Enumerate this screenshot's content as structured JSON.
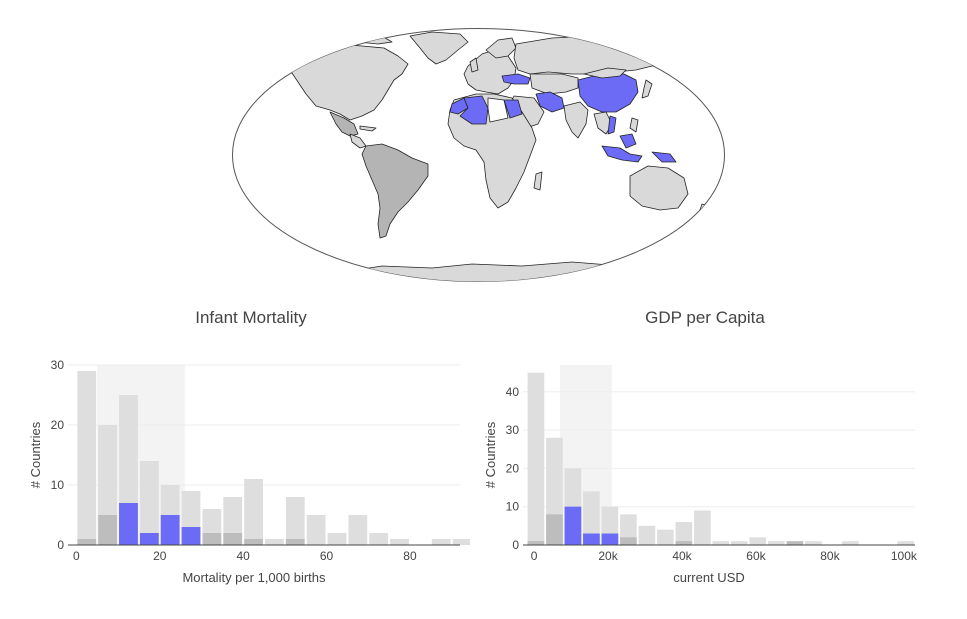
{
  "colors": {
    "highlight": "#6b6bf5",
    "country_default": "#d9d9d9",
    "country_dark": "#b4b4b4",
    "bar_background": "#dedede",
    "bar_mid": "#bdbdbd",
    "selection_band": "#f3f3f3",
    "grid": "#eeeeee",
    "axis_text": "#444444"
  },
  "map": {
    "highlighted_regions": [
      "China",
      "Turkey",
      "Iran",
      "Algeria",
      "Egypt",
      "Indonesia",
      "Vietnam",
      "Morocco"
    ],
    "darker_regions": [
      "Mexico",
      "Brazil",
      "Colombia",
      "Peru",
      "Argentina"
    ]
  },
  "chart_data": [
    {
      "type": "bar",
      "title": "Infant Mortality",
      "xlabel": "Mortality per 1,000 births",
      "ylabel": "# Countries",
      "xlim": [
        -2,
        92
      ],
      "ylim": [
        0,
        30
      ],
      "x_ticks": [
        0,
        20,
        40,
        60,
        80
      ],
      "x_tick_labels": [
        "0",
        "20",
        "40",
        "60",
        "80"
      ],
      "y_ticks": [
        0,
        10,
        20,
        30
      ],
      "bin_width": 5,
      "bin_starts": [
        0,
        5,
        10,
        15,
        20,
        25,
        30,
        35,
        40,
        45,
        50,
        55,
        60,
        65,
        70,
        75,
        80,
        85,
        90
      ],
      "selection_range": [
        5,
        26
      ],
      "grid": true,
      "series": [
        {
          "values": [
            29,
            20,
            25,
            14,
            10,
            9,
            6,
            8,
            11,
            1,
            8,
            5,
            2,
            5,
            2,
            1,
            0,
            1,
            1
          ],
          "color": "#dedede"
        },
        {
          "values": [
            1,
            5,
            7,
            2,
            5,
            3,
            2,
            2,
            1,
            0,
            1,
            0,
            0,
            0,
            0,
            0,
            0,
            0,
            0
          ],
          "color": "#bdbdbd"
        },
        {
          "values": [
            0,
            0,
            7,
            2,
            5,
            3,
            0,
            0,
            0,
            0,
            0,
            0,
            0,
            0,
            0,
            0,
            0,
            0,
            0
          ],
          "color": "#6b6bf5"
        }
      ]
    },
    {
      "type": "bar",
      "title": "GDP per Capita",
      "xlabel": "current USD",
      "ylabel": "# Countries",
      "xlim": [
        -3000,
        103000
      ],
      "ylim": [
        0,
        47
      ],
      "x_ticks": [
        0,
        20000,
        40000,
        60000,
        80000,
        100000
      ],
      "x_tick_labels": [
        "0",
        "20k",
        "40k",
        "60k",
        "80k",
        "100k"
      ],
      "y_ticks": [
        0,
        10,
        20,
        30,
        40
      ],
      "bin_width": 5000,
      "bin_starts": [
        -2000,
        3000,
        8000,
        13000,
        18000,
        23000,
        28000,
        33000,
        38000,
        43000,
        48000,
        53000,
        58000,
        63000,
        68000,
        73000,
        78000,
        83000,
        88000,
        93000,
        98000
      ],
      "selection_range": [
        7000,
        21000
      ],
      "grid": true,
      "series": [
        {
          "values": [
            45,
            28,
            20,
            14,
            10,
            8,
            5,
            4,
            6,
            9,
            1,
            1,
            2,
            1,
            1,
            1,
            0,
            1,
            0,
            0,
            1
          ],
          "color": "#dedede"
        },
        {
          "values": [
            1,
            8,
            10,
            3,
            3,
            2,
            0,
            0,
            1,
            0,
            0,
            0,
            0,
            0,
            1,
            0,
            0,
            0,
            0,
            0,
            0
          ],
          "color": "#bdbdbd"
        },
        {
          "values": [
            0,
            0,
            10,
            3,
            3,
            0,
            0,
            0,
            0,
            0,
            0,
            0,
            0,
            0,
            0,
            0,
            0,
            0,
            0,
            0,
            0
          ],
          "color": "#6b6bf5"
        }
      ]
    }
  ]
}
